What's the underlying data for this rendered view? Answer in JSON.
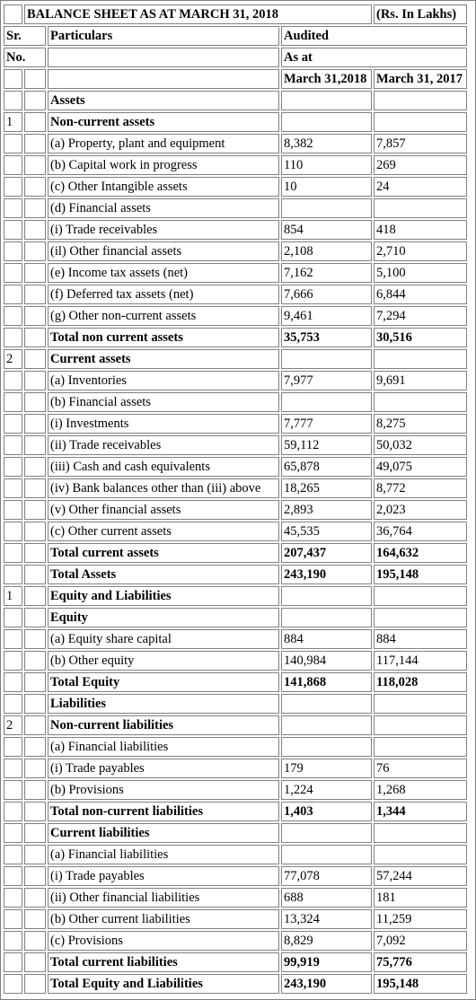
{
  "header": {
    "title": "BALANCE SHEET AS AT MARCH 31, 2018",
    "unit": "(Rs. In Lakhs)",
    "sr_label": "Sr.",
    "no_label": "No.",
    "particulars_label": "Particulars",
    "audited_label": "Audited",
    "as_at_label": "As at",
    "col_2018": "March 31,2018",
    "col_2017": "March 31, 2017"
  },
  "rows": [
    {
      "sr": "",
      "label": "Assets",
      "v2018": "",
      "v2017": "",
      "bold": true
    },
    {
      "sr": "1",
      "label": "Non-current assets",
      "v2018": "",
      "v2017": "",
      "bold": true
    },
    {
      "sr": "",
      "label": "(a) Property, plant and equipment",
      "v2018": "8,382",
      "v2017": "7,857",
      "bold": false
    },
    {
      "sr": "",
      "label": "(b) Capital work in progress",
      "v2018": "110",
      "v2017": "269",
      "bold": false
    },
    {
      "sr": "",
      "label": "(c) Other Intangible assets",
      "v2018": "10",
      "v2017": "24",
      "bold": false
    },
    {
      "sr": "",
      "label": "(d) Financial assets",
      "v2018": "",
      "v2017": "",
      "bold": false
    },
    {
      "sr": "",
      "label": "(i) Trade receivables",
      "v2018": "854",
      "v2017": "418",
      "bold": false
    },
    {
      "sr": "",
      "label": "(il) Other financial assets",
      "v2018": "2,108",
      "v2017": "2,710",
      "bold": false
    },
    {
      "sr": "",
      "label": "(e) Income tax assets (net)",
      "v2018": "7,162",
      "v2017": "5,100",
      "bold": false
    },
    {
      "sr": "",
      "label": "(f) Deferred tax assets (net)",
      "v2018": "7,666",
      "v2017": "6,844",
      "bold": false
    },
    {
      "sr": "",
      "label": "(g) Other non-current assets",
      "v2018": "9,461",
      "v2017": "7,294",
      "bold": false
    },
    {
      "sr": "",
      "label": "Total non current assets",
      "v2018": "35,753",
      "v2017": "30,516",
      "bold": true
    },
    {
      "sr": "2",
      "label": "Current assets",
      "v2018": "",
      "v2017": "",
      "bold": true
    },
    {
      "sr": "",
      "label": "(a) Inventories",
      "v2018": "7,977",
      "v2017": "9,691",
      "bold": false
    },
    {
      "sr": "",
      "label": "(b) Financial assets",
      "v2018": "",
      "v2017": "",
      "bold": false
    },
    {
      "sr": "",
      "label": "(i) Investments",
      "v2018": "7,777",
      "v2017": "8,275",
      "bold": false
    },
    {
      "sr": "",
      "label": "(ii) Trade receivables",
      "v2018": "59,112",
      "v2017": "50,032",
      "bold": false
    },
    {
      "sr": "",
      "label": "(iii) Cash and cash equivalents",
      "v2018": "65,878",
      "v2017": "49,075",
      "bold": false
    },
    {
      "sr": "",
      "label": "(iv) Bank balances other than (iii) above",
      "v2018": "18,265",
      "v2017": "8,772",
      "bold": false
    },
    {
      "sr": "",
      "label": "(v) Other financial assets",
      "v2018": "2,893",
      "v2017": "2,023",
      "bold": false
    },
    {
      "sr": "",
      "label": "(c) Other current assets",
      "v2018": "45,535",
      "v2017": "36,764",
      "bold": false
    },
    {
      "sr": "",
      "label": "Total current assets",
      "v2018": "207,437",
      "v2017": "164,632",
      "bold": true
    },
    {
      "sr": "",
      "label": "Total Assets",
      "v2018": "243,190",
      "v2017": "195,148",
      "bold": true
    },
    {
      "sr": "1",
      "label": "Equity and Liabilities",
      "v2018": "",
      "v2017": "",
      "bold": true
    },
    {
      "sr": "",
      "label": "Equity",
      "v2018": "",
      "v2017": "",
      "bold": true
    },
    {
      "sr": "",
      "label": "(a) Equity share capital",
      "v2018": "884",
      "v2017": "884",
      "bold": false
    },
    {
      "sr": "",
      "label": "(b) Other equity",
      "v2018": "140,984",
      "v2017": "117,144",
      "bold": false
    },
    {
      "sr": "",
      "label": "Total Equity",
      "v2018": "141,868",
      "v2017": "118,028",
      "bold": true
    },
    {
      "sr": "",
      "label": "Liabilities",
      "v2018": "",
      "v2017": "",
      "bold": true
    },
    {
      "sr": "2",
      "label": "Non-current liabilities",
      "v2018": "",
      "v2017": "",
      "bold": true
    },
    {
      "sr": "",
      "label": "(a) Financial liabilities",
      "v2018": "",
      "v2017": "",
      "bold": false
    },
    {
      "sr": "",
      "label": "(i) Trade payables",
      "v2018": "179",
      "v2017": "76",
      "bold": false
    },
    {
      "sr": "",
      "label": "(b) Provisions",
      "v2018": "1,224",
      "v2017": "1,268",
      "bold": false
    },
    {
      "sr": "",
      "label": "Total non-current liabilities",
      "v2018": "1,403",
      "v2017": "1,344",
      "bold": true
    },
    {
      "sr": "",
      "label": "Current liabilities",
      "v2018": "",
      "v2017": "",
      "bold": true
    },
    {
      "sr": "",
      "label": "(a) Financial liabilities",
      "v2018": "",
      "v2017": "",
      "bold": false
    },
    {
      "sr": "",
      "label": "(i) Trade payables",
      "v2018": "77,078",
      "v2017": "57,244",
      "bold": false
    },
    {
      "sr": "",
      "label": "(ii) Other financial liabilities",
      "v2018": "688",
      "v2017": "181",
      "bold": false
    },
    {
      "sr": "",
      "label": "(b) Other current liabilities",
      "v2018": "13,324",
      "v2017": "11,259",
      "bold": false
    },
    {
      "sr": "",
      "label": "(c) Provisions",
      "v2018": "8,829",
      "v2017": "7,092",
      "bold": false
    },
    {
      "sr": "",
      "label": "Total current liabilities",
      "v2018": "99,919",
      "v2017": "75,776",
      "bold": true
    },
    {
      "sr": "",
      "label": "Total Equity and Liabilities",
      "v2018": "243,190",
      "v2017": "195,148",
      "bold": true
    }
  ]
}
